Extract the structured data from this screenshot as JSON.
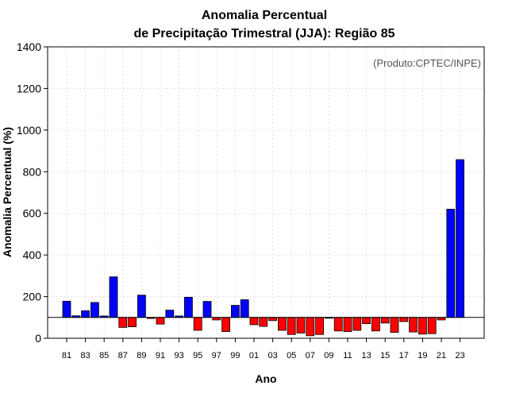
{
  "chart_data": {
    "type": "bar",
    "title_line1": "Anomalia Percentual",
    "title_line2": "de Precipitação Trimestral (JJA): Região 85",
    "xlabel": "Ano",
    "ylabel": "Anomalia Percentual (%)",
    "credit": "(Produto:CPTEC/INPE)",
    "ylim": [
      0,
      1400
    ],
    "yticks": [
      0,
      200,
      400,
      600,
      800,
      1000,
      1200,
      1400
    ],
    "baseline": 100,
    "grid": true,
    "colors": {
      "positive": "#0000ff",
      "negative": "#ff0000",
      "edge": "#000000"
    },
    "categories": [
      "81",
      "82",
      "83",
      "84",
      "85",
      "86",
      "87",
      "88",
      "89",
      "90",
      "91",
      "92",
      "93",
      "94",
      "95",
      "96",
      "97",
      "98",
      "99",
      "00",
      "01",
      "02",
      "03",
      "04",
      "05",
      "06",
      "07",
      "08",
      "09",
      "10",
      "11",
      "12",
      "13",
      "14",
      "15",
      "16",
      "17",
      "18",
      "19",
      "20",
      "21",
      "22",
      "23"
    ],
    "xtick_labels": [
      "81",
      "83",
      "85",
      "87",
      "89",
      "91",
      "93",
      "95",
      "97",
      "99",
      "01",
      "03",
      "05",
      "07",
      "09",
      "11",
      "13",
      "15",
      "17",
      "19",
      "21",
      "23"
    ],
    "values": [
      178,
      108,
      132,
      172,
      107,
      295,
      52,
      55,
      207,
      95,
      68,
      135,
      107,
      197,
      38,
      177,
      88,
      32,
      158,
      185,
      65,
      57,
      85,
      38,
      18,
      25,
      12,
      18,
      100,
      35,
      32,
      38,
      70,
      35,
      73,
      28,
      80,
      30,
      20,
      22,
      88,
      620,
      858
    ]
  }
}
